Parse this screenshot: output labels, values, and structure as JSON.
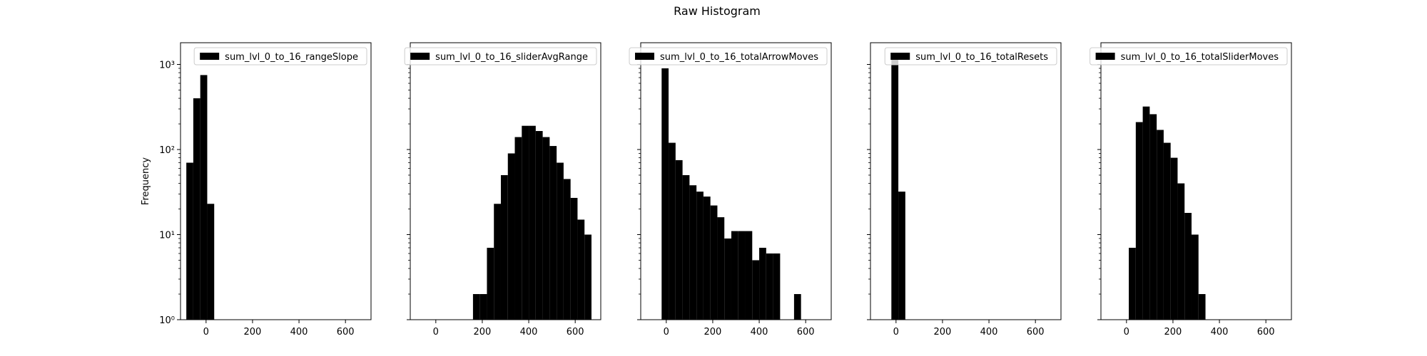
{
  "figure": {
    "title": "Raw Histogram"
  },
  "chart_data": [
    {
      "type": "histogram",
      "ylabel": "Frequency",
      "yscale": "log",
      "ylim": [
        1,
        1800
      ],
      "xlim": [
        -110,
        710
      ],
      "xticks": [
        0,
        200,
        400,
        600
      ],
      "xtick_labels": [
        "0",
        "200",
        "400",
        "600"
      ],
      "yticks": [
        1,
        10,
        100,
        1000
      ],
      "ytick_labels": [
        "10⁰",
        "10¹",
        "10²",
        "10³"
      ],
      "bin_width": 30,
      "legend": "sum_lvl_0_to_16_rangeSlope",
      "legend_position": "top-right",
      "bins": [
        {
          "x0": -85,
          "count": 70
        },
        {
          "x0": -55,
          "count": 400
        },
        {
          "x0": -25,
          "count": 750
        },
        {
          "x0": 5,
          "count": 23
        }
      ]
    },
    {
      "type": "histogram",
      "yscale": "log",
      "ylim": [
        1,
        1800
      ],
      "xlim": [
        -110,
        710
      ],
      "xticks": [
        0,
        200,
        400,
        600
      ],
      "xtick_labels": [
        "0",
        "200",
        "400",
        "600"
      ],
      "yticks": [
        1,
        10,
        100,
        1000
      ],
      "ytick_labels": [
        "",
        "",
        "",
        ""
      ],
      "bin_width": 30,
      "legend": "sum_lvl_0_to_16_sliderAvgRange",
      "legend_position": "top-right",
      "bins": [
        {
          "x0": 160,
          "count": 2
        },
        {
          "x0": 190,
          "count": 2
        },
        {
          "x0": 220,
          "count": 7
        },
        {
          "x0": 250,
          "count": 23
        },
        {
          "x0": 280,
          "count": 50
        },
        {
          "x0": 310,
          "count": 90
        },
        {
          "x0": 340,
          "count": 140
        },
        {
          "x0": 370,
          "count": 190
        },
        {
          "x0": 400,
          "count": 190
        },
        {
          "x0": 430,
          "count": 165
        },
        {
          "x0": 460,
          "count": 140
        },
        {
          "x0": 490,
          "count": 110
        },
        {
          "x0": 520,
          "count": 70
        },
        {
          "x0": 550,
          "count": 45
        },
        {
          "x0": 580,
          "count": 27
        },
        {
          "x0": 610,
          "count": 15
        },
        {
          "x0": 640,
          "count": 10
        }
      ]
    },
    {
      "type": "histogram",
      "yscale": "log",
      "ylim": [
        1,
        1800
      ],
      "xlim": [
        -110,
        710
      ],
      "xticks": [
        0,
        200,
        400,
        600
      ],
      "xtick_labels": [
        "0",
        "200",
        "400",
        "600"
      ],
      "yticks": [
        1,
        10,
        100,
        1000
      ],
      "ytick_labels": [
        "",
        "",
        "",
        ""
      ],
      "bin_width": 30,
      "legend": "sum_lvl_0_to_16_totalArrowMoves",
      "legend_position": "top-right",
      "bins": [
        {
          "x0": -20,
          "count": 900
        },
        {
          "x0": 10,
          "count": 120
        },
        {
          "x0": 40,
          "count": 75
        },
        {
          "x0": 70,
          "count": 50
        },
        {
          "x0": 100,
          "count": 38
        },
        {
          "x0": 130,
          "count": 32
        },
        {
          "x0": 160,
          "count": 28
        },
        {
          "x0": 190,
          "count": 22
        },
        {
          "x0": 220,
          "count": 16
        },
        {
          "x0": 250,
          "count": 9
        },
        {
          "x0": 280,
          "count": 11
        },
        {
          "x0": 310,
          "count": 11
        },
        {
          "x0": 340,
          "count": 11
        },
        {
          "x0": 370,
          "count": 5
        },
        {
          "x0": 400,
          "count": 7
        },
        {
          "x0": 430,
          "count": 6
        },
        {
          "x0": 460,
          "count": 6
        },
        {
          "x0": 490,
          "count": 1
        },
        {
          "x0": 520,
          "count": 1
        },
        {
          "x0": 550,
          "count": 2
        }
      ]
    },
    {
      "type": "histogram",
      "yscale": "log",
      "ylim": [
        1,
        1800
      ],
      "xlim": [
        -110,
        710
      ],
      "xticks": [
        0,
        200,
        400,
        600
      ],
      "xtick_labels": [
        "0",
        "200",
        "400",
        "600"
      ],
      "yticks": [
        1,
        10,
        100,
        1000
      ],
      "ytick_labels": [
        "",
        "",
        "",
        ""
      ],
      "bin_width": 30,
      "legend": "sum_lvl_0_to_16_totalResets",
      "legend_position": "top-right",
      "bins": [
        {
          "x0": -20,
          "count": 1300
        },
        {
          "x0": 10,
          "count": 32
        }
      ]
    },
    {
      "type": "histogram",
      "yscale": "log",
      "ylim": [
        1,
        1800
      ],
      "xlim": [
        -110,
        710
      ],
      "xticks": [
        0,
        200,
        400,
        600
      ],
      "xtick_labels": [
        "0",
        "200",
        "400",
        "600"
      ],
      "yticks": [
        1,
        10,
        100,
        1000
      ],
      "ytick_labels": [
        "",
        "",
        "",
        ""
      ],
      "bin_width": 30,
      "legend": "sum_lvl_0_to_16_totalSliderMoves",
      "legend_position": "top-right",
      "bins": [
        {
          "x0": 10,
          "count": 7
        },
        {
          "x0": 40,
          "count": 210
        },
        {
          "x0": 70,
          "count": 320
        },
        {
          "x0": 100,
          "count": 260
        },
        {
          "x0": 130,
          "count": 170
        },
        {
          "x0": 160,
          "count": 120
        },
        {
          "x0": 190,
          "count": 80
        },
        {
          "x0": 220,
          "count": 40
        },
        {
          "x0": 250,
          "count": 18
        },
        {
          "x0": 280,
          "count": 10
        },
        {
          "x0": 310,
          "count": 2
        }
      ]
    }
  ]
}
